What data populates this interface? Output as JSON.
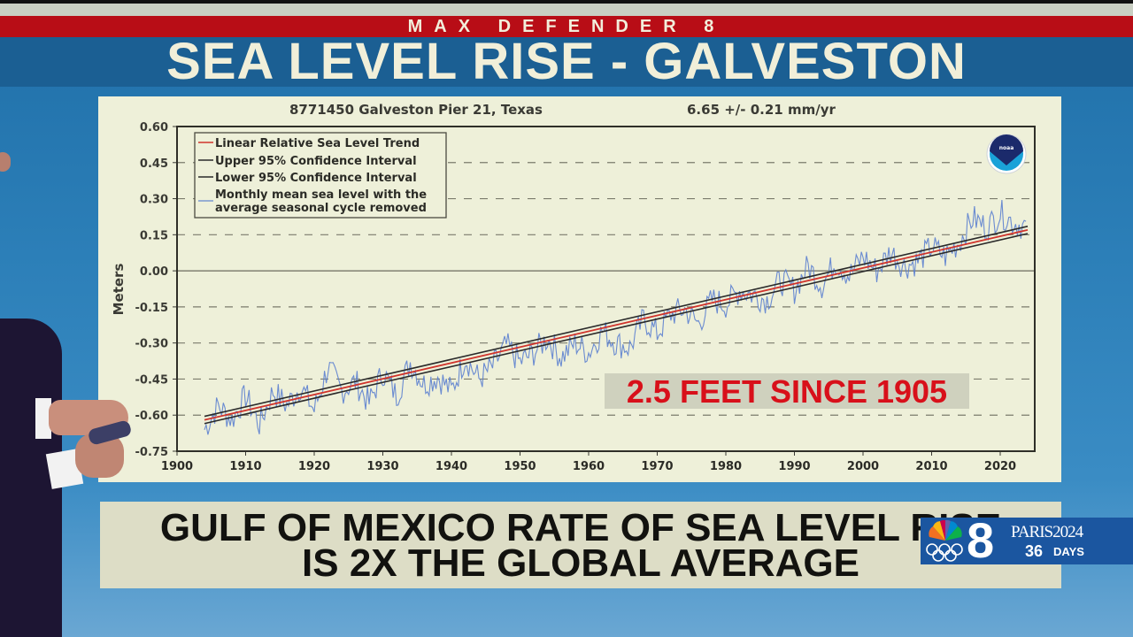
{
  "header": {
    "segment": "MAX DEFENDER 8",
    "title": "SEA LEVEL RISE - GALVESTON"
  },
  "chart_panel": {
    "title_left": "8771450 Galveston Pier 21, Texas",
    "title_right": "6.65 +/-  0.21 mm/yr",
    "ylabel": "Meters",
    "logo": "noaa",
    "annotation": "2.5 FEET SINCE 1905"
  },
  "lower_third": {
    "line1": "GULF OF MEXICO RATE OF SEA LEVEL RISE",
    "line2": "IS 2X THE GLOBAL AVERAGE"
  },
  "station_logo": {
    "channel": "8",
    "event": "PARIS2024",
    "countdown_number": "36",
    "countdown_label": "DAYS"
  },
  "colors": {
    "red_bar": "#b80d16",
    "blue_bar": "#1b5f93",
    "chart_bg": "#eef0d9",
    "trend": "#d0342c",
    "confidence": "#2a2a2a",
    "monthly": "#5b7fcf",
    "annotation": "#d8101a"
  },
  "chart_data": {
    "type": "line",
    "title": "8771450 Galveston Pier 21, Texas",
    "subtitle": "6.65 +/- 0.21 mm/yr",
    "xlabel": "",
    "ylabel": "Meters",
    "xlim": [
      1900,
      2025
    ],
    "ylim": [
      -0.75,
      0.6
    ],
    "xticks": [
      1900,
      1910,
      1920,
      1930,
      1940,
      1950,
      1960,
      1970,
      1980,
      1990,
      2000,
      2010,
      2020
    ],
    "yticks": [
      0.6,
      0.45,
      0.3,
      0.15,
      0.0,
      -0.15,
      -0.3,
      -0.45,
      -0.6,
      -0.75
    ],
    "ytick_labels": [
      "0.60",
      "0.45",
      "0.30",
      "0.15",
      "0.00",
      "-0.15",
      "-0.30",
      "-0.45",
      "-0.60",
      "-0.75"
    ],
    "grid": "dashed horizontal",
    "legend_position": "upper left",
    "legend": [
      "Linear Relative Sea Level Trend",
      "Upper 95% Confidence Interval",
      "Lower 95% Confidence Interval",
      "Monthly mean sea level with the average seasonal cycle removed"
    ],
    "series": [
      {
        "name": "Linear Relative Sea Level Trend",
        "x": [
          1904,
          2024
        ],
        "values": [
          -0.62,
          0.17
        ]
      },
      {
        "name": "Upper 95% Confidence Interval",
        "x": [
          1904,
          2024
        ],
        "values": [
          -0.605,
          0.185
        ]
      },
      {
        "name": "Lower 95% Confidence Interval",
        "x": [
          1904,
          2024
        ],
        "values": [
          -0.635,
          0.155
        ]
      },
      {
        "name": "Monthly mean sea level with the average seasonal cycle removed",
        "x": [
          1904,
          1906,
          1908,
          1910,
          1912,
          1914,
          1916,
          1918,
          1920,
          1922,
          1924,
          1926,
          1928,
          1930,
          1932,
          1934,
          1936,
          1938,
          1940,
          1942,
          1944,
          1946,
          1948,
          1950,
          1952,
          1954,
          1956,
          1958,
          1960,
          1962,
          1964,
          1966,
          1968,
          1970,
          1972,
          1974,
          1976,
          1978,
          1980,
          1982,
          1984,
          1986,
          1988,
          1990,
          1992,
          1994,
          1996,
          1998,
          2000,
          2002,
          2004,
          2006,
          2008,
          2010,
          2012,
          2014,
          2016,
          2018,
          2020,
          2022,
          2024
        ],
        "values": [
          -0.66,
          -0.56,
          -0.62,
          -0.52,
          -0.64,
          -0.5,
          -0.56,
          -0.48,
          -0.58,
          -0.4,
          -0.5,
          -0.46,
          -0.55,
          -0.42,
          -0.52,
          -0.38,
          -0.47,
          -0.44,
          -0.5,
          -0.36,
          -0.45,
          -0.4,
          -0.31,
          -0.38,
          -0.34,
          -0.28,
          -0.36,
          -0.3,
          -0.34,
          -0.25,
          -0.3,
          -0.32,
          -0.2,
          -0.26,
          -0.18,
          -0.16,
          -0.22,
          -0.12,
          -0.14,
          -0.08,
          -0.1,
          -0.12,
          -0.04,
          -0.08,
          0.02,
          -0.06,
          0.04,
          -0.02,
          0.06,
          0.0,
          0.08,
          0.02,
          0.04,
          0.1,
          0.06,
          0.12,
          0.22,
          0.18,
          0.24,
          0.2,
          0.18
        ]
      }
    ]
  }
}
